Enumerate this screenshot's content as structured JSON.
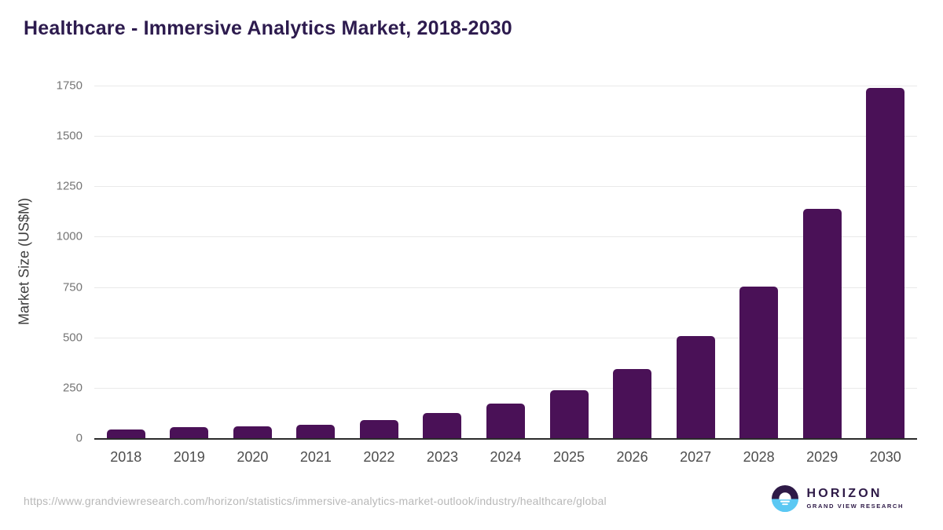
{
  "chart_data": {
    "type": "bar",
    "title": "Healthcare - Immersive Analytics Market, 2018-2030",
    "xlabel": "",
    "ylabel": "Market Size (US$M)",
    "categories": [
      "2018",
      "2019",
      "2020",
      "2021",
      "2022",
      "2023",
      "2024",
      "2025",
      "2026",
      "2027",
      "2028",
      "2029",
      "2030"
    ],
    "values": [
      44,
      53,
      57,
      67,
      90,
      124,
      170,
      236,
      343,
      507,
      751,
      1138,
      1740
    ],
    "ylim": [
      0,
      1750
    ],
    "yticks": [
      0,
      250,
      500,
      750,
      1000,
      1250,
      1500,
      1750
    ],
    "grid": "horizontal",
    "legend": "none",
    "bar_color": "#4a1157"
  },
  "colors": {
    "title": "#2d1b4e",
    "bar": "#4a1157",
    "gridline": "#e9e9e9",
    "axis_line": "#2b2b2b",
    "y_tick_label": "#757575",
    "x_tick_label": "#4d4d4d",
    "source_text": "#b8b8b8",
    "logo_purple": "#2e1a47",
    "logo_blue": "#5bc8f3"
  },
  "footer": {
    "source_url": "https://www.grandviewresearch.com/horizon/statistics/immersive-analytics-market-outlook/industry/healthcare/global",
    "logo": {
      "brand": "HORIZON",
      "subtitle": "GRAND VIEW RESEARCH"
    }
  }
}
